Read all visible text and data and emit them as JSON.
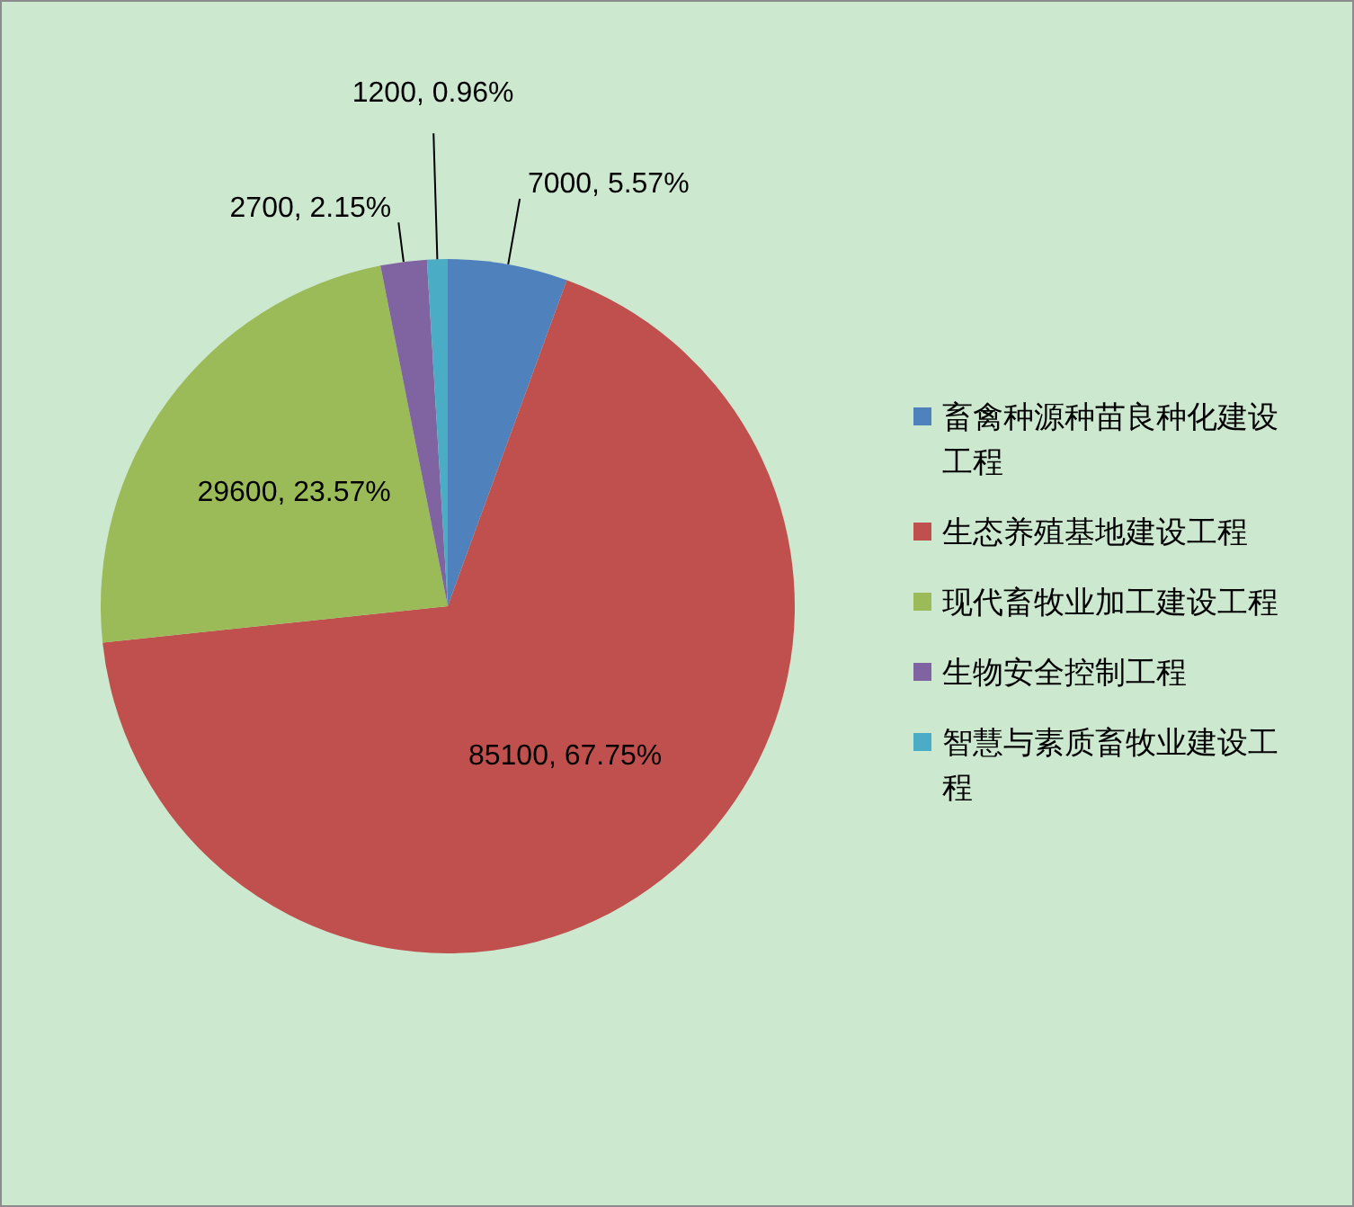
{
  "chart_data": {
    "type": "pie",
    "categories": [
      "畜禽种源种苗良种化建设工程",
      "生态养殖基地建设工程",
      "现代畜牧业加工建设工程",
      "生物安全控制工程",
      "智慧与素质畜牧业建设工程"
    ],
    "values": [
      7000,
      85100,
      29600,
      2700,
      1200
    ],
    "colors": [
      "#4f81bd",
      "#c0504d",
      "#9bbb59",
      "#8064a2",
      "#4bacc6"
    ],
    "value_labels": [
      "7000, 5.57%",
      "85100, 67.75%",
      "29600, 23.57%",
      "2700, 2.15%",
      "1200, 0.96%"
    ],
    "legend": "right"
  }
}
